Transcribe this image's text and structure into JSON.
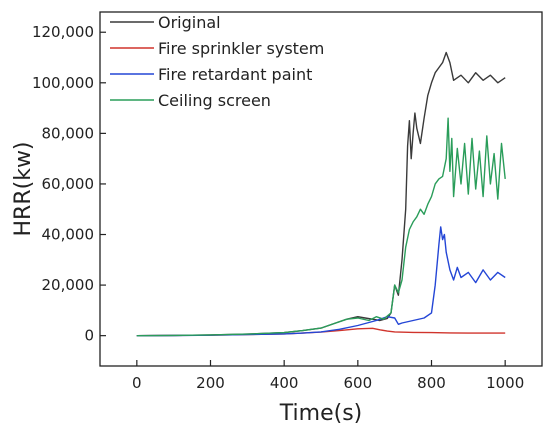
{
  "chart_data": {
    "type": "line",
    "xlabel": "Time(s)",
    "ylabel": "HRR(kw)",
    "xlim": [
      -100,
      1100
    ],
    "ylim": [
      -12000,
      128000
    ],
    "x_ticks": [
      0,
      200,
      400,
      600,
      800,
      1000
    ],
    "x_tick_labels": [
      "0",
      "200",
      "400",
      "600",
      "800",
      "1000"
    ],
    "y_ticks": [
      0,
      20000,
      40000,
      60000,
      80000,
      100000,
      120000
    ],
    "y_tick_labels": [
      "0",
      "20,000",
      "40,000",
      "60,000",
      "80,000",
      "100,000",
      "120,000"
    ],
    "legend_position": "top-left",
    "grid": false,
    "series": [
      {
        "name": "Original",
        "color": "#3a3a3a",
        "x": [
          0,
          100,
          200,
          300,
          400,
          450,
          500,
          540,
          570,
          600,
          620,
          640,
          660,
          680,
          690,
          700,
          710,
          720,
          730,
          735,
          740,
          745,
          750,
          755,
          760,
          770,
          780,
          790,
          800,
          810,
          820,
          830,
          840,
          850,
          860,
          880,
          900,
          920,
          940,
          960,
          980,
          1000
        ],
        "y": [
          0,
          100,
          300,
          600,
          1200,
          2000,
          3000,
          5000,
          6500,
          7500,
          7000,
          6500,
          6000,
          6800,
          9000,
          20000,
          16000,
          30000,
          50000,
          75000,
          85000,
          70000,
          80000,
          88000,
          82000,
          76000,
          86000,
          95000,
          100000,
          104000,
          106000,
          108000,
          112000,
          108000,
          101000,
          103000,
          100000,
          104000,
          101000,
          103000,
          100000,
          102000
        ]
      },
      {
        "name": "Fire sprinkler system",
        "color": "#d0342c",
        "x": [
          0,
          100,
          200,
          300,
          400,
          450,
          500,
          550,
          600,
          640,
          660,
          680,
          700,
          750,
          800,
          850,
          900,
          950,
          1000
        ],
        "y": [
          0,
          100,
          200,
          400,
          700,
          1000,
          1400,
          2000,
          2700,
          2900,
          2300,
          1800,
          1500,
          1300,
          1200,
          1100,
          1000,
          1000,
          1000
        ]
      },
      {
        "name": "Fire retardant paint",
        "color": "#2446d6",
        "x": [
          0,
          100,
          200,
          300,
          400,
          450,
          500,
          550,
          600,
          650,
          680,
          700,
          710,
          720,
          750,
          780,
          800,
          810,
          820,
          825,
          830,
          835,
          840,
          850,
          860,
          870,
          880,
          900,
          920,
          940,
          960,
          980,
          1000
        ],
        "y": [
          0,
          50,
          200,
          400,
          700,
          1000,
          1500,
          2500,
          4000,
          6000,
          7500,
          7000,
          4500,
          5000,
          6000,
          7000,
          9000,
          20000,
          36000,
          43000,
          38000,
          40000,
          33000,
          26000,
          22000,
          27000,
          23000,
          25000,
          21000,
          26000,
          22000,
          25000,
          23000
        ]
      },
      {
        "name": "Ceiling screen",
        "color": "#2a9d5a",
        "x": [
          0,
          100,
          200,
          300,
          400,
          450,
          500,
          540,
          570,
          600,
          630,
          650,
          670,
          690,
          700,
          710,
          720,
          730,
          740,
          750,
          760,
          770,
          780,
          790,
          800,
          810,
          820,
          830,
          840,
          845,
          850,
          855,
          860,
          870,
          880,
          890,
          900,
          910,
          920,
          930,
          940,
          950,
          960,
          970,
          980,
          990,
          1000
        ],
        "y": [
          0,
          100,
          300,
          600,
          1200,
          2000,
          3000,
          5000,
          6500,
          7000,
          6000,
          7500,
          6500,
          9000,
          20000,
          17000,
          22000,
          35000,
          42000,
          45000,
          47000,
          50000,
          48000,
          52000,
          55000,
          60000,
          62000,
          63000,
          70000,
          86000,
          65000,
          78000,
          55000,
          74000,
          60000,
          76000,
          56000,
          78000,
          58000,
          73000,
          55000,
          79000,
          60000,
          72000,
          54000,
          76000,
          62000
        ]
      }
    ]
  }
}
